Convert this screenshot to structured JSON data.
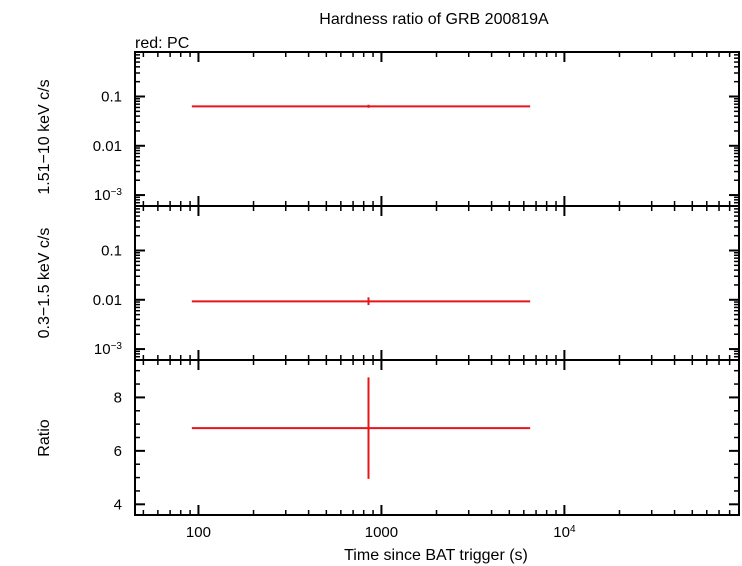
{
  "chart_data": {
    "type": "scatter",
    "title": "Hardness ratio of GRB 200819A",
    "legend": "red: PC",
    "xlabel": "Time since BAT trigger (s)",
    "xscale": "log",
    "xlim": [
      45,
      90000
    ],
    "xticks": [
      {
        "value": 100,
        "label": "100",
        "sup": ""
      },
      {
        "value": 1000,
        "label": "1000",
        "sup": ""
      },
      {
        "value": 10000,
        "label": "10",
        "sup": "4"
      }
    ],
    "series_color": "#e8141b",
    "panels": [
      {
        "name": "hard",
        "ylabel": "1.51−10 keV c/s",
        "yscale": "log",
        "ylim": [
          0.0006,
          0.8
        ],
        "yticks": [
          {
            "value": 0.1,
            "label": "0.1",
            "sup": ""
          },
          {
            "value": 0.01,
            "label": "0.01",
            "sup": ""
          },
          {
            "value": 0.001,
            "label": "10",
            "sup": "−3"
          }
        ],
        "points": [
          {
            "x": 850,
            "xlo": 92,
            "xhi": 6500,
            "y": 0.063,
            "ylo": 0.059,
            "yhi": 0.068
          }
        ]
      },
      {
        "name": "soft",
        "ylabel": "0.3−1.5 keV c/s",
        "yscale": "log",
        "ylim": [
          0.0006,
          0.8
        ],
        "yticks": [
          {
            "value": 0.1,
            "label": "0.1",
            "sup": ""
          },
          {
            "value": 0.01,
            "label": "0.01",
            "sup": ""
          },
          {
            "value": 0.001,
            "label": "10",
            "sup": "−3"
          }
        ],
        "points": [
          {
            "x": 850,
            "xlo": 92,
            "xhi": 6500,
            "y": 0.0093,
            "ylo": 0.0078,
            "yhi": 0.0112
          }
        ]
      },
      {
        "name": "ratio",
        "ylabel": "Ratio",
        "yscale": "linear",
        "ylim": [
          3.6,
          9.4
        ],
        "yticks": [
          {
            "value": 4,
            "label": "4",
            "sup": ""
          },
          {
            "value": 6,
            "label": "6",
            "sup": ""
          },
          {
            "value": 8,
            "label": "8",
            "sup": ""
          }
        ],
        "points": [
          {
            "x": 850,
            "xlo": 92,
            "xhi": 6500,
            "y": 6.85,
            "ylo": 4.95,
            "yhi": 8.75
          }
        ]
      }
    ]
  }
}
